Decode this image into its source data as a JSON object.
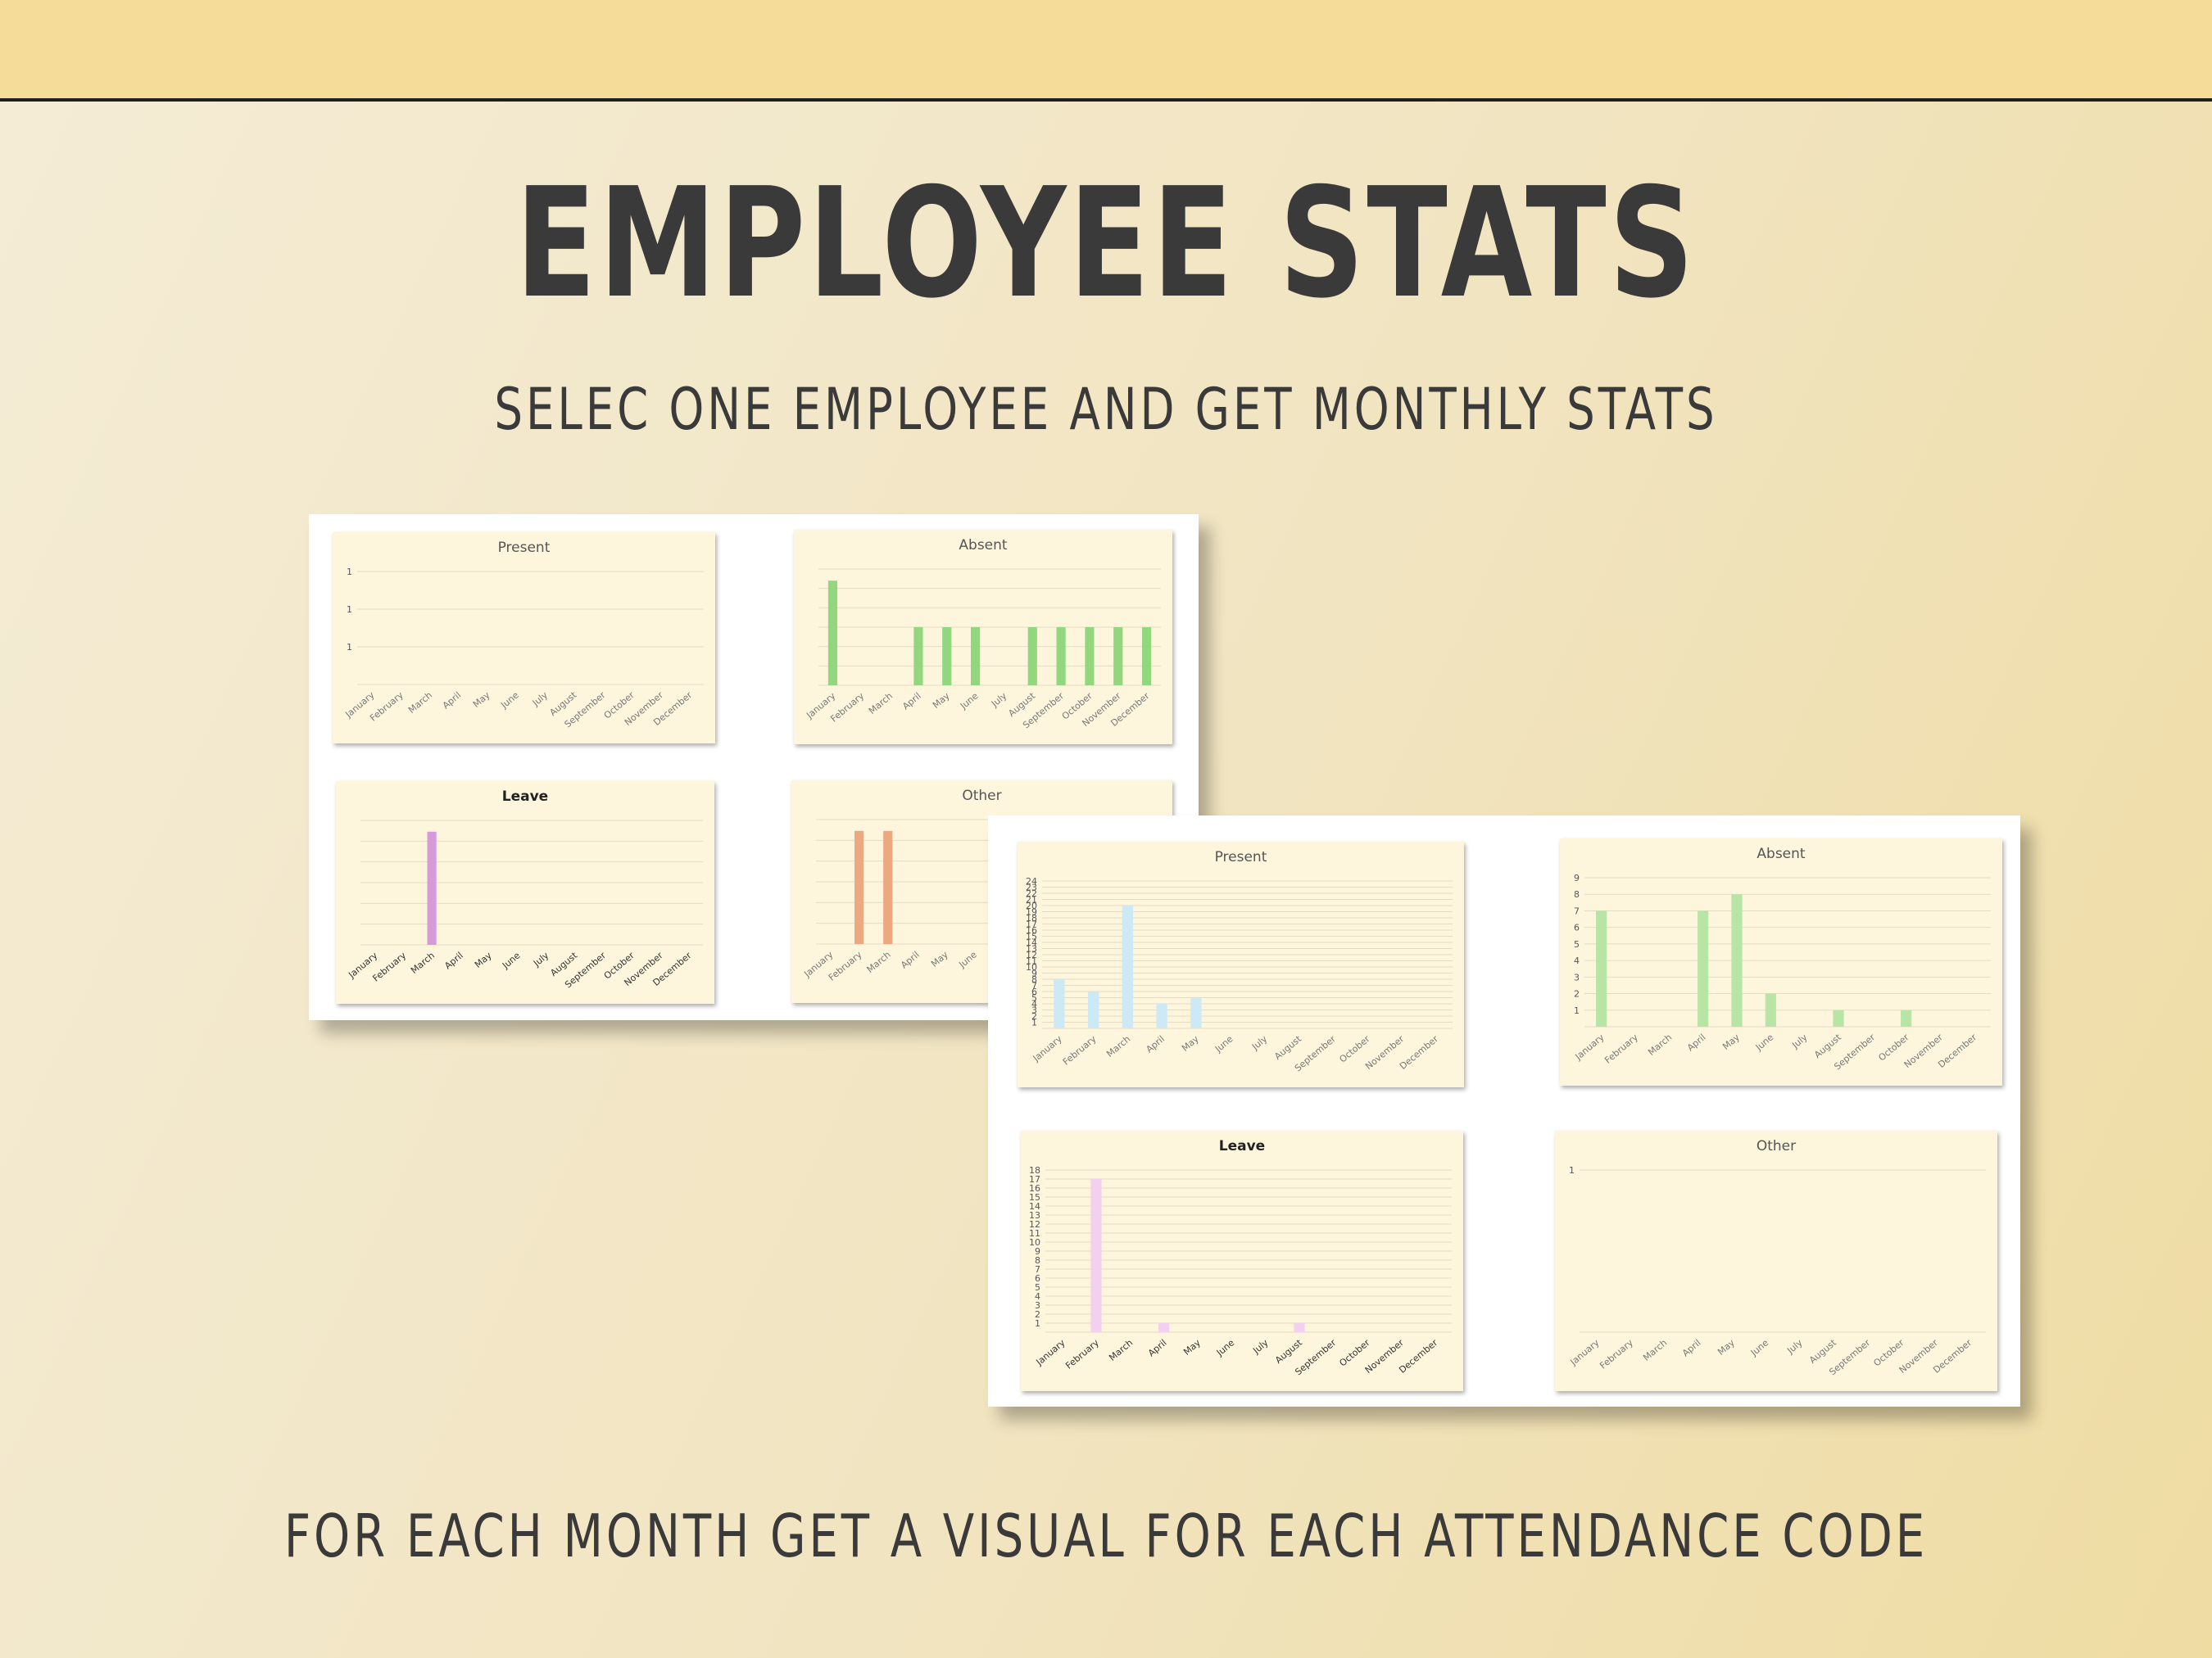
{
  "page": {
    "title": "EMPLOYEE STATS",
    "subtitle": "SELEC ONE EMPLOYEE AND GET MONTHLY STATS",
    "footer": "FOR EACH MONTH GET A VISUAL FOR EACH ATTENDANCE CODE"
  },
  "colors": {
    "present_first": "#d6e0c8",
    "absent": "#92d67e",
    "leave_first": "#d699d9",
    "other_first": "#eea880",
    "present_second": "#cde9f5",
    "absent_second": "#b8e5a6",
    "leave_second": "#f3cff0"
  },
  "chart_data": [
    {
      "type": "bar",
      "title": "Present",
      "categories": [
        "January",
        "February",
        "March",
        "April",
        "May",
        "June",
        "July",
        "August",
        "September",
        "October",
        "November",
        "December"
      ],
      "series": [
        {
          "values": [
            0,
            0,
            0,
            0,
            0,
            0,
            0,
            0,
            0,
            0,
            0,
            0
          ]
        }
      ],
      "yticks": [
        "1",
        "1",
        "1"
      ],
      "ylim": [
        0,
        1
      ]
    },
    {
      "type": "bar",
      "title": "Absent",
      "categories": [
        "January",
        "February",
        "March",
        "April",
        "May",
        "June",
        "July",
        "August",
        "September",
        "October",
        "November",
        "December"
      ],
      "series": [
        {
          "values": [
            9,
            0,
            0,
            5,
            5,
            5,
            0,
            5,
            5,
            5,
            5,
            5
          ]
        }
      ],
      "yticks": [],
      "ylim": [
        0,
        10
      ]
    },
    {
      "type": "bar",
      "title": "Leave",
      "categories": [
        "January",
        "February",
        "March",
        "April",
        "May",
        "June",
        "July",
        "August",
        "September",
        "October",
        "November",
        "December"
      ],
      "series": [
        {
          "values": [
            0,
            0,
            10,
            0,
            0,
            0,
            0,
            0,
            0,
            0,
            0,
            0
          ]
        }
      ],
      "yticks": [],
      "ylim": [
        0,
        11
      ]
    },
    {
      "type": "bar",
      "title": "Other",
      "categories": [
        "January",
        "February",
        "March",
        "April",
        "May",
        "June"
      ],
      "series": [
        {
          "values": [
            0,
            10,
            10,
            0,
            0,
            0
          ]
        }
      ],
      "yticks": [],
      "ylim": [
        0,
        11
      ]
    },
    {
      "type": "bar",
      "title": "Present",
      "categories": [
        "January",
        "February",
        "March",
        "April",
        "May",
        "June",
        "July",
        "August",
        "September",
        "October",
        "November",
        "December"
      ],
      "series": [
        {
          "values": [
            8,
            6,
            20,
            4,
            5,
            0,
            0,
            0,
            0,
            0,
            0,
            0
          ]
        }
      ],
      "yticks": [
        "1",
        "2",
        "3",
        "4",
        "5",
        "6",
        "7",
        "8",
        "9",
        "10",
        "11",
        "12",
        "13",
        "14",
        "15",
        "16",
        "17",
        "18",
        "19",
        "20",
        "21",
        "22",
        "23",
        "24"
      ],
      "ylim": [
        0,
        24
      ]
    },
    {
      "type": "bar",
      "title": "Absent",
      "categories": [
        "January",
        "February",
        "March",
        "April",
        "May",
        "June",
        "July",
        "August",
        "September",
        "October",
        "November",
        "December"
      ],
      "series": [
        {
          "values": [
            7,
            0,
            0,
            7,
            8,
            2,
            0,
            1,
            0,
            1,
            0,
            0
          ]
        }
      ],
      "yticks": [
        "1",
        "2",
        "3",
        "4",
        "5",
        "6",
        "7",
        "8",
        "9"
      ],
      "ylim": [
        0,
        9
      ]
    },
    {
      "type": "bar",
      "title": "Leave",
      "categories": [
        "January",
        "February",
        "March",
        "April",
        "May",
        "June",
        "July",
        "August",
        "September",
        "October",
        "November",
        "December"
      ],
      "series": [
        {
          "values": [
            0,
            17,
            0,
            1,
            0,
            0,
            0,
            1,
            0,
            0,
            0,
            0
          ]
        }
      ],
      "yticks": [
        "1",
        "2",
        "3",
        "4",
        "5",
        "6",
        "7",
        "8",
        "9",
        "10",
        "11",
        "12",
        "13",
        "14",
        "15",
        "16",
        "17",
        "18"
      ],
      "ylim": [
        0,
        18
      ]
    },
    {
      "type": "bar",
      "title": "Other",
      "categories": [
        "January",
        "February",
        "March",
        "April",
        "May",
        "June",
        "July",
        "August",
        "September",
        "October",
        "November",
        "December"
      ],
      "series": [
        {
          "values": [
            0,
            0,
            0,
            0,
            0,
            0,
            0,
            0,
            0,
            0,
            0,
            0
          ]
        }
      ],
      "yticks": [
        "1"
      ],
      "ylim": [
        0,
        1
      ]
    }
  ]
}
